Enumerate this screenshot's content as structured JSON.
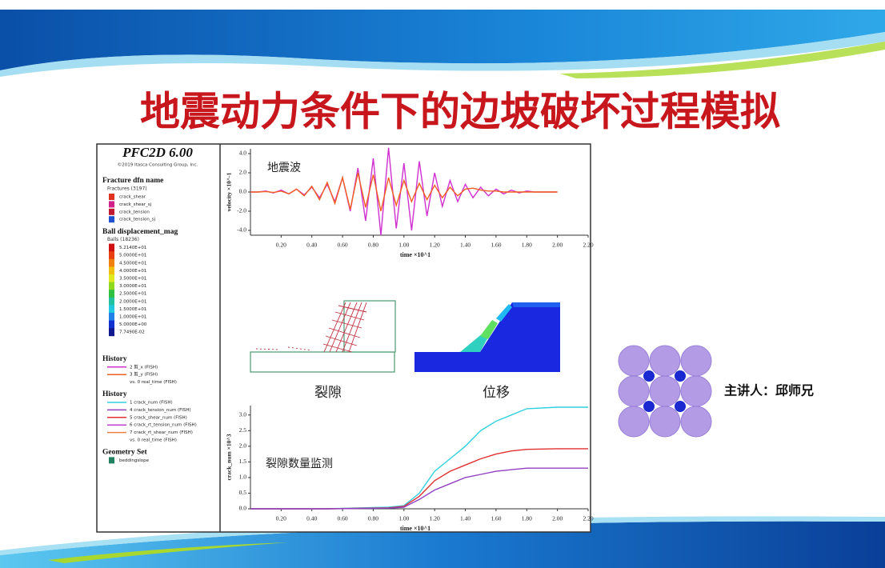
{
  "slide": {
    "title": "地震动力条件下的边坡破坏过程模拟",
    "presenter": "主讲人：邱师兄",
    "crack_image_label": "裂隙",
    "displacement_image_label": "位移"
  },
  "legend_panel": {
    "app": "PFC2D 6.00",
    "copyright": "©2019 Itasca Consulting Group, Inc.",
    "sections": [
      {
        "heading": "Fracture dfn name",
        "subheading": "Fractures (3197)",
        "items": [
          {
            "label": "crack_shear",
            "color": "#e03020"
          },
          {
            "label": "crack_shear_sj",
            "color": "#d0208a"
          },
          {
            "label": "crack_tension",
            "color": "#c01830"
          },
          {
            "label": "crack_tension_sj",
            "color": "#2050d0"
          }
        ]
      },
      {
        "heading": "Ball displacement_mag",
        "subheading": "Balls (18236)",
        "items": [
          {
            "label": "5.2140E+01",
            "color": "#d01010"
          },
          {
            "label": "5.0000E+01",
            "color": "#e84010"
          },
          {
            "label": "4.5000E+01",
            "color": "#f08010"
          },
          {
            "label": "4.0000E+01",
            "color": "#f0c010"
          },
          {
            "label": "3.5000E+01",
            "color": "#e0e820"
          },
          {
            "label": "3.0000E+01",
            "color": "#90d820"
          },
          {
            "label": "2.5000E+01",
            "color": "#30c040"
          },
          {
            "label": "2.0000E+01",
            "color": "#20c0a0"
          },
          {
            "label": "1.5000E+01",
            "color": "#20c8e0"
          },
          {
            "label": "1.0000E+01",
            "color": "#2080e8"
          },
          {
            "label": "5.0000E+00",
            "color": "#1030d0"
          },
          {
            "label": "7.7490E-02",
            "color": "#101890"
          }
        ]
      },
      {
        "heading": "History",
        "items": [
          {
            "label": "2 剪_x (FISH)",
            "color": "#d030d0"
          },
          {
            "label": "3 剪_y (FISH)",
            "color": "#f06020"
          },
          {
            "label": "vs. 0 real_time (FISH)"
          }
        ]
      },
      {
        "heading": "History",
        "items": [
          {
            "label": "1 crack_num (FISH)",
            "color": "#30d0e0"
          },
          {
            "label": "4 crack_tension_num (FISH)",
            "color": "#9040c0"
          },
          {
            "label": "5 crack_shear_num (FISH)",
            "color": "#e03030"
          },
          {
            "label": "6 crack_rt_tension_num (FISH)",
            "color": "#c040d0"
          },
          {
            "label": "7 crack_rt_shear_num (FISH)",
            "color": "#f08040"
          },
          {
            "label": "vs. 0 real_time (FISH)"
          }
        ]
      },
      {
        "heading": "Geometry Set",
        "items": [
          {
            "label": "beddingslope",
            "color": "#208060"
          }
        ]
      }
    ]
  },
  "chart_data": [
    {
      "type": "line",
      "label": "地震波",
      "y_label": "velocity ×10^-1",
      "x_label": "time ×10^1",
      "x": [
        0,
        0.05,
        0.1,
        0.15,
        0.2,
        0.25,
        0.3,
        0.35,
        0.4,
        0.45,
        0.5,
        0.55,
        0.6,
        0.65,
        0.7,
        0.75,
        0.8,
        0.85,
        0.9,
        0.95,
        1.0,
        1.05,
        1.1,
        1.15,
        1.2,
        1.25,
        1.3,
        1.35,
        1.4,
        1.45,
        1.5,
        1.55,
        1.6,
        1.65,
        1.7,
        1.75,
        1.8,
        1.85,
        1.9,
        1.95,
        2.0
      ],
      "series": [
        {
          "name": "2 剪_x (FISH)",
          "color": "#d030d0",
          "values": [
            0,
            0,
            0.1,
            -0.1,
            0.2,
            -0.2,
            0.3,
            -0.3,
            0.5,
            -0.6,
            0.8,
            -1.0,
            1.5,
            -2.0,
            2.5,
            -3.0,
            3.5,
            -4.5,
            4.6,
            -3.8,
            3.0,
            -4.0,
            3.2,
            -2.5,
            2.0,
            -1.5,
            1.2,
            -1.0,
            0.8,
            -0.6,
            0.5,
            -0.4,
            0.3,
            -0.2,
            0.2,
            -0.1,
            0.1,
            0,
            0,
            0,
            0
          ]
        },
        {
          "name": "3 剪_y (FISH)",
          "color": "#f06020",
          "values": [
            0,
            0,
            0.05,
            -0.05,
            0.1,
            -0.2,
            0.3,
            -0.4,
            0.6,
            -0.8,
            1.0,
            -1.2,
            1.5,
            -1.8,
            2.0,
            -1.6,
            1.8,
            -2.0,
            1.5,
            -1.4,
            1.2,
            -1.0,
            0.9,
            -0.8,
            0.7,
            -0.6,
            0.5,
            -0.4,
            0.3,
            0.4,
            0.2,
            0.1,
            0.1,
            0,
            0,
            0,
            0,
            0,
            0,
            0,
            0
          ]
        }
      ],
      "xlim": [
        0,
        2.2
      ],
      "ylim": [
        -4.5,
        4.5
      ],
      "xticks": [
        {
          "value": 0.2,
          "label": "0.20"
        },
        {
          "value": 0.4,
          "label": "0.40"
        },
        {
          "value": 0.6,
          "label": "0.60"
        },
        {
          "value": 0.8,
          "label": "0.80"
        },
        {
          "value": 1.0,
          "label": "1.00"
        },
        {
          "value": 1.2,
          "label": "1.20"
        },
        {
          "value": 1.4,
          "label": "1.40"
        },
        {
          "value": 1.6,
          "label": "1.60"
        },
        {
          "value": 1.8,
          "label": "1.80"
        },
        {
          "value": 2.0,
          "label": "2.00"
        },
        {
          "value": 2.2,
          "label": "2.20"
        }
      ],
      "yticks": [
        {
          "value": -4,
          "label": "-4.0"
        },
        {
          "value": -2,
          "label": "-2.0"
        },
        {
          "value": 0,
          "label": "0.0"
        },
        {
          "value": 2,
          "label": "2.0"
        },
        {
          "value": 4,
          "label": "4.0"
        }
      ]
    },
    {
      "type": "line",
      "label": "裂隙数量监测",
      "y_label": "crack_num ×10^3",
      "x_label": "time ×10^1",
      "x": [
        0,
        0.5,
        0.9,
        1.0,
        1.1,
        1.2,
        1.3,
        1.4,
        1.5,
        1.6,
        1.7,
        1.8,
        2.0,
        2.2
      ],
      "series": [
        {
          "name": "1 crack_num (FISH)",
          "color": "#30d0e0",
          "values": [
            0,
            0,
            0.05,
            0.1,
            0.5,
            1.2,
            1.6,
            2.0,
            2.5,
            2.8,
            3.0,
            3.2,
            3.25,
            3.25
          ]
        },
        {
          "name": "5 crack_shear_num (FISH)",
          "color": "#e03030",
          "values": [
            0,
            0,
            0.03,
            0.08,
            0.4,
            0.9,
            1.2,
            1.4,
            1.6,
            1.75,
            1.85,
            1.9,
            1.92,
            1.92
          ]
        },
        {
          "name": "4 crack_tension_num (FISH)",
          "color": "#9040c0",
          "values": [
            0,
            0,
            0.02,
            0.05,
            0.3,
            0.6,
            0.8,
            1.0,
            1.1,
            1.2,
            1.25,
            1.3,
            1.3,
            1.3
          ]
        }
      ],
      "xlim": [
        0,
        2.2
      ],
      "ylim": [
        0,
        3.3
      ],
      "xticks": [
        {
          "value": 0.2,
          "label": "0.20"
        },
        {
          "value": 0.4,
          "label": "0.40"
        },
        {
          "value": 0.6,
          "label": "0.60"
        },
        {
          "value": 0.8,
          "label": "0.80"
        },
        {
          "value": 1.0,
          "label": "1.00"
        },
        {
          "value": 1.2,
          "label": "1.20"
        },
        {
          "value": 1.4,
          "label": "1.40"
        },
        {
          "value": 1.6,
          "label": "1.60"
        },
        {
          "value": 1.8,
          "label": "1.80"
        },
        {
          "value": 2.0,
          "label": "2.00"
        },
        {
          "value": 2.2,
          "label": "2.20"
        }
      ],
      "yticks": [
        {
          "value": 0,
          "label": "0.0"
        },
        {
          "value": 0.5,
          "label": "0.5"
        },
        {
          "value": 1.0,
          "label": "1.0"
        },
        {
          "value": 1.5,
          "label": "1.5"
        },
        {
          "value": 2.0,
          "label": "2.0"
        },
        {
          "value": 2.5,
          "label": "2.5"
        },
        {
          "value": 3.0,
          "label": "3.0"
        }
      ]
    }
  ]
}
